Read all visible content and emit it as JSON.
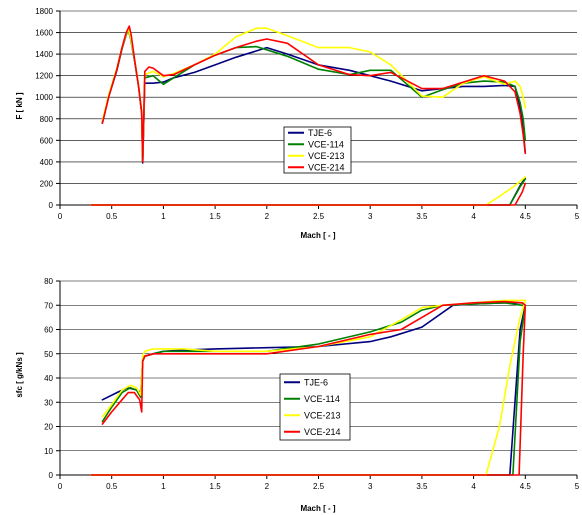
{
  "colors": {
    "grid": "#000000",
    "axis": "#000000"
  },
  "chart_data": [
    {
      "type": "line",
      "title": "",
      "xlabel": "Mach [ - ]",
      "ylabel": "F [ kN ]",
      "xlim": [
        0,
        5
      ],
      "ylim": [
        0,
        1800
      ],
      "xticks": [
        0,
        0.5,
        1,
        1.5,
        2,
        2.5,
        3,
        3.5,
        4,
        4.5,
        5
      ],
      "xtick_labels": [
        "0",
        "0.5",
        "1",
        "1.5",
        "2",
        "2.5",
        "3",
        "3.5",
        "4",
        "4.5",
        "5"
      ],
      "yticks": [
        0,
        200,
        400,
        600,
        800,
        1000,
        1200,
        1400,
        1600,
        1800
      ],
      "ytick_labels": [
        "0",
        "200",
        "400",
        "600",
        "800",
        "1000",
        "1200",
        "1400",
        "1600",
        "1800"
      ],
      "grid": "horizontal",
      "legend_position": "center",
      "series": [
        {
          "name": "TJE-6",
          "color": "#00007f",
          "x": [
            0.41,
            0.47,
            0.55,
            0.6,
            0.64,
            0.66,
            0.68,
            0.72,
            0.76,
            0.79,
            0.8,
            0.82,
            0.9,
            1.0,
            1.1,
            1.3,
            1.5,
            1.7,
            1.9,
            2.0,
            2.2,
            2.5,
            2.8,
            3.0,
            3.2,
            3.5,
            3.7,
            3.9,
            4.1,
            4.3,
            4.4,
            4.45,
            4.48,
            4.5
          ],
          "y": [
            760,
            1000,
            1250,
            1450,
            1580,
            1630,
            1560,
            1350,
            1100,
            850,
            390,
            1130,
            1130,
            1140,
            1180,
            1230,
            1300,
            1370,
            1430,
            1460,
            1400,
            1300,
            1250,
            1200,
            1150,
            1060,
            1080,
            1100,
            1100,
            1110,
            1100,
            900,
            700,
            480
          ]
        },
        {
          "name": "TJE-6",
          "color": "#00007f",
          "x": [
            0.3,
            1.0,
            2.0,
            3.0,
            4.0,
            4.35,
            4.45,
            4.5
          ],
          "y": [
            0,
            0,
            0,
            0,
            0,
            0,
            180,
            250
          ]
        },
        {
          "name": "VCE-114",
          "color": "#007f00",
          "x": [
            0.41,
            0.47,
            0.55,
            0.6,
            0.64,
            0.66,
            0.68,
            0.72,
            0.76,
            0.79,
            0.8,
            0.82,
            0.9,
            1.0,
            1.1,
            1.3,
            1.5,
            1.7,
            1.9,
            2.0,
            2.2,
            2.5,
            2.8,
            3.0,
            3.2,
            3.5,
            3.7,
            3.9,
            4.1,
            4.3,
            4.4,
            4.45,
            4.48,
            4.5
          ],
          "y": [
            770,
            1010,
            1260,
            1450,
            1580,
            1620,
            1560,
            1350,
            1100,
            850,
            400,
            1180,
            1200,
            1120,
            1180,
            1300,
            1390,
            1460,
            1470,
            1440,
            1380,
            1260,
            1210,
            1250,
            1250,
            1000,
            1070,
            1130,
            1150,
            1140,
            1100,
            950,
            800,
            600
          ]
        },
        {
          "name": "VCE-114",
          "color": "#007f00",
          "x": [
            0.3,
            1.0,
            2.0,
            3.0,
            4.0,
            4.35,
            4.45,
            4.5
          ],
          "y": [
            0,
            0,
            0,
            0,
            0,
            0,
            170,
            240
          ]
        },
        {
          "name": "VCE-213",
          "color": "#ffff00",
          "x": [
            0.41,
            0.47,
            0.55,
            0.6,
            0.64,
            0.66,
            0.68,
            0.72,
            0.76,
            0.79,
            0.8,
            0.82,
            0.9,
            1.0,
            1.1,
            1.3,
            1.5,
            1.7,
            1.9,
            2.0,
            2.2,
            2.5,
            2.8,
            3.0,
            3.2,
            3.5,
            3.7,
            3.9,
            4.1,
            4.3,
            4.4,
            4.45,
            4.48,
            4.5
          ],
          "y": [
            780,
            1020,
            1270,
            1460,
            1590,
            1630,
            1570,
            1360,
            1110,
            860,
            420,
            1210,
            1240,
            1190,
            1220,
            1300,
            1400,
            1560,
            1640,
            1640,
            1570,
            1460,
            1460,
            1420,
            1300,
            1010,
            1000,
            1130,
            1190,
            1120,
            1150,
            1100,
            1000,
            900
          ]
        },
        {
          "name": "VCE-213",
          "color": "#ffff00",
          "x": [
            0.3,
            1.0,
            2.0,
            3.0,
            4.0,
            4.12,
            4.25,
            4.4,
            4.5
          ],
          "y": [
            0,
            0,
            0,
            0,
            0,
            0,
            80,
            180,
            260
          ]
        },
        {
          "name": "VCE-214",
          "color": "#ff0000",
          "x": [
            0.41,
            0.47,
            0.55,
            0.6,
            0.64,
            0.67,
            0.69,
            0.72,
            0.76,
            0.79,
            0.8,
            0.82,
            0.86,
            0.9,
            1.0,
            1.1,
            1.3,
            1.5,
            1.7,
            1.9,
            2.0,
            2.2,
            2.5,
            2.8,
            3.0,
            3.2,
            3.5,
            3.7,
            3.9,
            4.1,
            4.3,
            4.4,
            4.45,
            4.48,
            4.5
          ],
          "y": [
            760,
            1000,
            1260,
            1460,
            1600,
            1660,
            1570,
            1360,
            1100,
            860,
            400,
            1240,
            1280,
            1270,
            1200,
            1210,
            1300,
            1390,
            1460,
            1520,
            1540,
            1500,
            1300,
            1210,
            1200,
            1230,
            1080,
            1080,
            1140,
            1200,
            1150,
            1050,
            850,
            650,
            480
          ]
        },
        {
          "name": "VCE-214",
          "color": "#ff0000",
          "x": [
            0.3,
            1.0,
            2.0,
            3.0,
            4.0,
            4.4,
            4.47,
            4.5
          ],
          "y": [
            0,
            0,
            0,
            0,
            0,
            0,
            120,
            200
          ]
        }
      ]
    },
    {
      "type": "line",
      "title": "",
      "xlabel": "Mach [ - ]",
      "ylabel": "sfc [ g/kNs ]",
      "xlim": [
        0,
        5
      ],
      "ylim": [
        0,
        80
      ],
      "xticks": [
        0,
        0.5,
        1,
        1.5,
        2,
        2.5,
        3,
        3.5,
        4,
        4.5,
        5
      ],
      "xtick_labels": [
        "0",
        "0.5",
        "1",
        "1.5",
        "2",
        "2.5",
        "3",
        "3.5",
        "4",
        "4.5",
        "5"
      ],
      "yticks": [
        0,
        10,
        20,
        30,
        40,
        50,
        60,
        70,
        80
      ],
      "ytick_labels": [
        "0",
        "10",
        "20",
        "30",
        "40",
        "50",
        "60",
        "70",
        "80"
      ],
      "grid": "horizontal",
      "legend_position": "center",
      "series": [
        {
          "name": "TJE-6",
          "color": "#00007f",
          "x": [
            0.41,
            0.55,
            0.65,
            0.75,
            0.78,
            0.8,
            0.82,
            0.9,
            1.0,
            1.2,
            1.5,
            2.0,
            2.5,
            3.0,
            3.2,
            3.5,
            3.8,
            4.0,
            4.3,
            4.47,
            4.5
          ],
          "y": [
            31,
            34,
            36,
            35,
            34,
            47,
            49,
            50,
            51,
            51.5,
            52,
            52.5,
            53,
            55,
            57,
            61,
            70,
            70.5,
            71,
            71,
            70
          ]
        },
        {
          "name": "TJE-6",
          "color": "#00007f",
          "x": [
            0.3,
            1.0,
            2.0,
            3.0,
            4.0,
            4.35,
            4.45,
            4.5
          ],
          "y": [
            0,
            0,
            0,
            0,
            0,
            0,
            60,
            70
          ]
        },
        {
          "name": "VCE-114",
          "color": "#007f00",
          "x": [
            0.41,
            0.5,
            0.6,
            0.68,
            0.74,
            0.78,
            0.8,
            0.82,
            0.9,
            1.0,
            1.2,
            1.5,
            2.0,
            2.5,
            3.0,
            3.3,
            3.5,
            3.7,
            4.0,
            4.3,
            4.47,
            4.5
          ],
          "y": [
            22,
            28,
            34,
            36,
            35,
            32,
            47,
            49,
            50,
            51,
            51,
            51,
            51,
            54,
            59,
            63,
            68,
            70,
            70.5,
            71,
            70,
            70
          ]
        },
        {
          "name": "VCE-114",
          "color": "#007f00",
          "x": [
            0.3,
            1.0,
            2.0,
            3.0,
            4.0,
            4.38,
            4.45,
            4.5
          ],
          "y": [
            0,
            0,
            0,
            0,
            0,
            0,
            55,
            70
          ]
        },
        {
          "name": "VCE-213",
          "color": "#ffff00",
          "x": [
            0.41,
            0.5,
            0.6,
            0.68,
            0.74,
            0.78,
            0.8,
            0.82,
            0.9,
            1.0,
            1.2,
            1.5,
            2.0,
            2.5,
            3.0,
            3.3,
            3.5,
            3.7,
            4.0,
            4.3,
            4.47,
            4.5
          ],
          "y": [
            24,
            29,
            35,
            37,
            36,
            33,
            49,
            51,
            52,
            52,
            52,
            51,
            51,
            53,
            57,
            64,
            69,
            70,
            71,
            72,
            72,
            72
          ]
        },
        {
          "name": "VCE-213",
          "color": "#ffff00",
          "x": [
            0.3,
            1.0,
            2.0,
            3.0,
            4.0,
            4.12,
            4.25,
            4.35,
            4.45,
            4.5
          ],
          "y": [
            0,
            0,
            0,
            0,
            0,
            0,
            20,
            45,
            65,
            72
          ]
        },
        {
          "name": "VCE-214",
          "color": "#ff0000",
          "x": [
            0.41,
            0.5,
            0.6,
            0.66,
            0.72,
            0.77,
            0.79,
            0.8,
            0.82,
            0.9,
            1.0,
            1.2,
            1.5,
            2.0,
            2.5,
            3.0,
            3.3,
            3.5,
            3.7,
            4.0,
            4.3,
            4.47,
            4.5
          ],
          "y": [
            21,
            26,
            31,
            34,
            34,
            31,
            26,
            47,
            49,
            50,
            50,
            50,
            50,
            50,
            53,
            58,
            60,
            65,
            70,
            71,
            71.5,
            71,
            70
          ]
        },
        {
          "name": "VCE-214",
          "color": "#ff0000",
          "x": [
            0.3,
            1.0,
            2.0,
            3.0,
            4.0,
            4.44,
            4.48,
            4.5
          ],
          "y": [
            0,
            0,
            0,
            0,
            0,
            0,
            50,
            70
          ]
        }
      ]
    }
  ],
  "legends": [
    {
      "items": [
        {
          "label": "TJE-6",
          "color": "#00007f"
        },
        {
          "label": "VCE-114",
          "color": "#007f00"
        },
        {
          "label": "VCE-213",
          "color": "#ffff00"
        },
        {
          "label": "VCE-214",
          "color": "#ff0000"
        }
      ]
    },
    {
      "items": [
        {
          "label": "TJE-6",
          "color": "#00007f"
        },
        {
          "label": "VCE-114",
          "color": "#007f00"
        },
        {
          "label": "VCE-213",
          "color": "#ffff00"
        },
        {
          "label": "VCE-214",
          "color": "#ff0000"
        }
      ]
    }
  ]
}
